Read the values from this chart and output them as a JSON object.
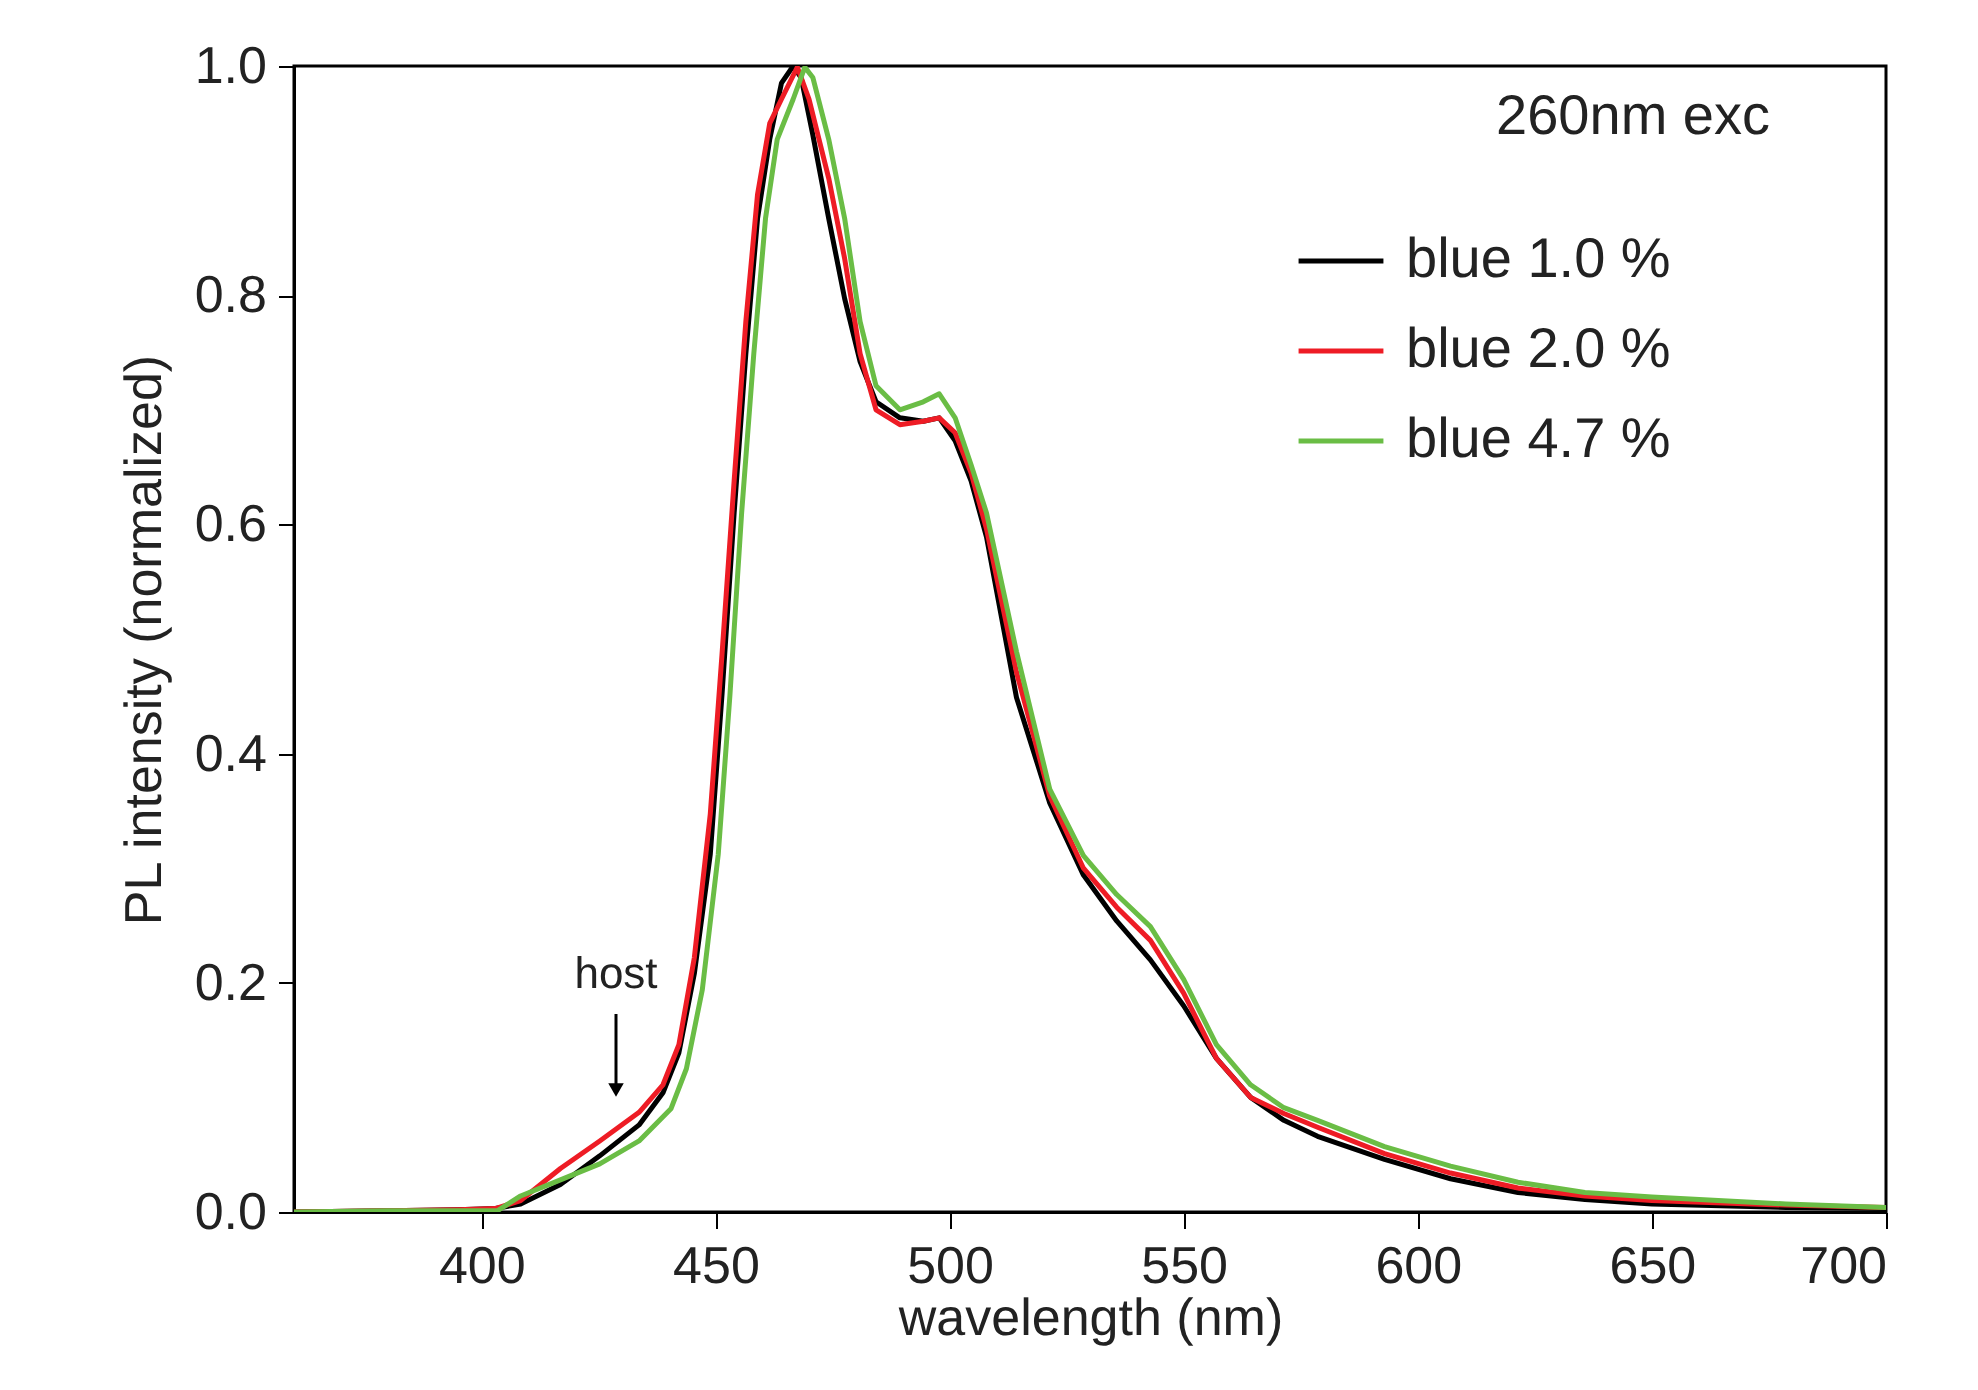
{
  "chart_data": {
    "type": "line",
    "xlabel": "wavelength (nm)",
    "ylabel": "PL intensity (normalized)",
    "xlim": [
      360,
      700
    ],
    "ylim": [
      0,
      1.0
    ],
    "xticks": [
      400,
      450,
      500,
      550,
      600,
      650,
      700
    ],
    "yticks": [
      {
        "value": 0,
        "label": "0.0"
      },
      {
        "value": 0.2,
        "label": "0.2"
      },
      {
        "value": 0.4,
        "label": "0.4"
      },
      {
        "value": 0.6,
        "label": "0.6"
      },
      {
        "value": 0.8,
        "label": "0.8"
      },
      {
        "value": 1.0,
        "label": "1.0"
      }
    ],
    "grid": false,
    "legend": "top right",
    "marker": "none",
    "line_style": "solid",
    "annotations": [
      "260nm exc",
      "host"
    ],
    "series": [
      {
        "name": "blue 1.0 %",
        "color": "#000000",
        "x": [
          360,
          380,
          395,
          403,
          408.4,
          416.9,
          425.3,
          433.7,
          438.8,
          442.2,
          445.5,
          448.9,
          451.4,
          454,
          456.5,
          459,
          461.6,
          464.1,
          466.6,
          468.3,
          470.8,
          474.2,
          477.6,
          480.9,
          484.3,
          489.4,
          494.4,
          497.8,
          501.2,
          504.6,
          507.9,
          514.3,
          521.4,
          528.6,
          535.7,
          542.9,
          550,
          557,
          564.3,
          571.4,
          578.6,
          592.9,
          607,
          621.4,
          635.7,
          650,
          678.6,
          700
        ],
        "values": [
          0,
          0.001,
          0.002,
          0.003,
          0.007,
          0.024,
          0.049,
          0.076,
          0.104,
          0.139,
          0.208,
          0.312,
          0.451,
          0.61,
          0.749,
          0.867,
          0.936,
          0.985,
          1.0,
          0.99,
          0.94,
          0.867,
          0.797,
          0.742,
          0.707,
          0.693,
          0.69,
          0.693,
          0.673,
          0.638,
          0.589,
          0.449,
          0.357,
          0.294,
          0.254,
          0.22,
          0.18,
          0.134,
          0.1,
          0.08,
          0.066,
          0.046,
          0.029,
          0.017,
          0.011,
          0.007,
          0.004,
          0.003
        ]
      },
      {
        "name": "blue 2.0 %",
        "color": "#ee1c25",
        "x": [
          360,
          380,
          395,
          403,
          408.4,
          416.9,
          425.3,
          433.7,
          438.8,
          442.2,
          445.5,
          448.9,
          451.4,
          454,
          456.5,
          459,
          461.6,
          464.1,
          467.5,
          470,
          474.2,
          477.6,
          480.9,
          484.3,
          489.4,
          494.4,
          497.8,
          501.2,
          504.6,
          507.9,
          514.3,
          521.4,
          528.6,
          535.7,
          542.9,
          550,
          557,
          564.3,
          571.4,
          578.6,
          592.9,
          607,
          621.4,
          635.7,
          650,
          678.6,
          700
        ],
        "values": [
          0,
          0.001,
          0.002,
          0.003,
          0.01,
          0.038,
          0.062,
          0.087,
          0.111,
          0.146,
          0.222,
          0.347,
          0.486,
          0.638,
          0.777,
          0.888,
          0.95,
          0.971,
          0.999,
          0.971,
          0.902,
          0.832,
          0.749,
          0.7,
          0.687,
          0.69,
          0.693,
          0.68,
          0.645,
          0.596,
          0.471,
          0.363,
          0.3,
          0.266,
          0.237,
          0.191,
          0.134,
          0.1,
          0.086,
          0.074,
          0.051,
          0.034,
          0.021,
          0.014,
          0.01,
          0.006,
          0.004
        ]
      },
      {
        "name": "blue 4.7 %",
        "color": "#6abd45",
        "x": [
          360,
          380,
          395,
          403.4,
          408.4,
          416.9,
          425.3,
          433.7,
          440.5,
          443.8,
          447.2,
          450.6,
          453.1,
          455.6,
          458.2,
          460.7,
          463.2,
          466.6,
          469.1,
          470.8,
          474.2,
          477.6,
          480.9,
          484.3,
          489.4,
          494.4,
          497.8,
          501.2,
          504.6,
          507.9,
          514.3,
          521.4,
          528.6,
          535.7,
          542.9,
          550,
          557,
          564.3,
          571.4,
          578.6,
          592.9,
          607,
          621.4,
          635.7,
          650,
          678.6,
          700
        ],
        "values": [
          0,
          0.001,
          0.001,
          0.001,
          0.014,
          0.028,
          0.042,
          0.062,
          0.09,
          0.125,
          0.194,
          0.312,
          0.451,
          0.61,
          0.749,
          0.867,
          0.936,
          0.971,
          0.999,
          0.99,
          0.936,
          0.867,
          0.777,
          0.721,
          0.7,
          0.707,
          0.714,
          0.693,
          0.652,
          0.61,
          0.489,
          0.369,
          0.311,
          0.277,
          0.249,
          0.203,
          0.146,
          0.111,
          0.091,
          0.08,
          0.057,
          0.04,
          0.026,
          0.017,
          0.013,
          0.007,
          0.004
        ]
      }
    ]
  }
}
